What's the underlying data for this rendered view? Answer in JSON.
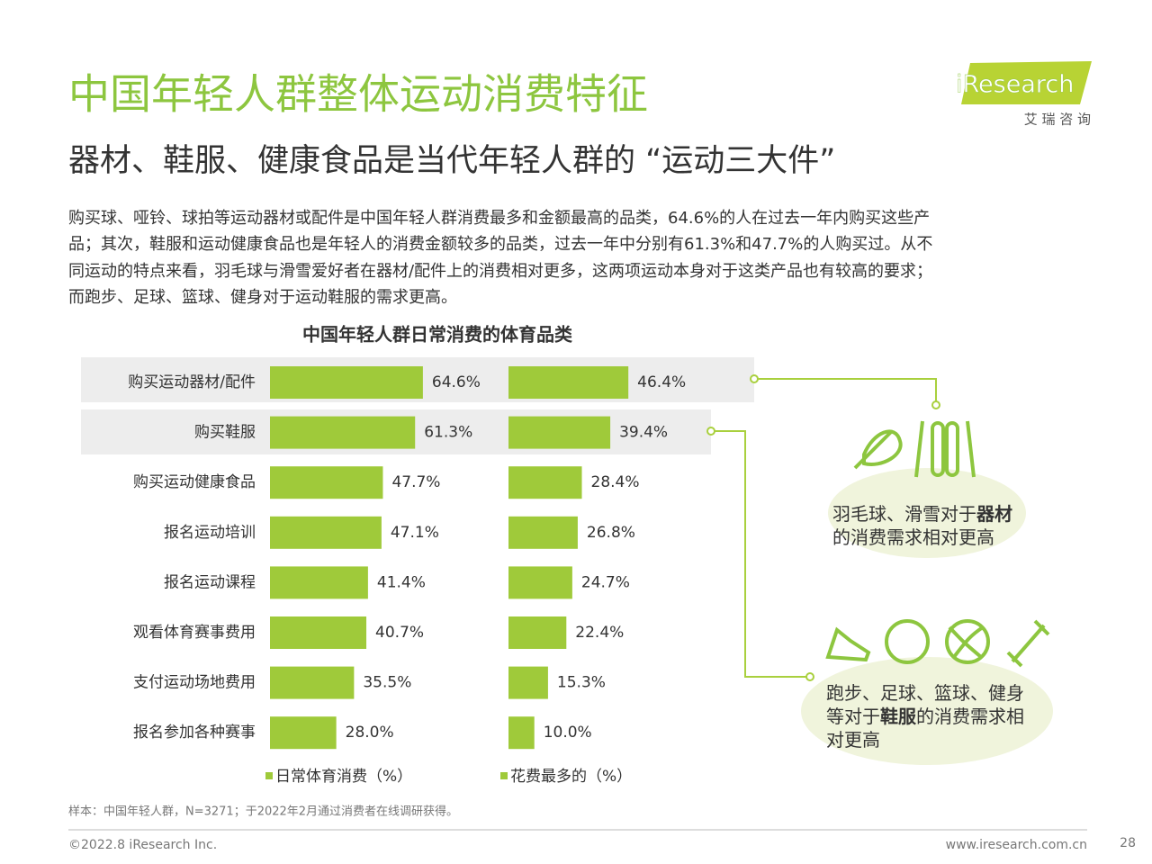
{
  "header": {
    "title": "中国年轻人群整体运动消费特征",
    "subtitle": "器材、鞋服、健康食品是当代年轻人群的 “运动三大件”",
    "body_lines": [
      "购买球、哑铃、球拍等运动器材或配件是中国年轻人群消费最多和金额最高的品类，64.6%的人在过去一年内购买这些产",
      "品；其次，鞋服和运动健康食品也是年轻人的消费金额较多的品类，过去一年中分别有61.3%和47.7%的人购买过。从不",
      "同运动的特点来看，羽毛球与滑雪爱好者在器材/配件上的消费相对更多，这两项运动本身对于这类产品也有较高的要求；",
      "而跑步、足球、篮球、健身对于运动鞋服的需求更高。"
    ]
  },
  "logo": {
    "brand": "iResearch",
    "brand_cn": "艾 瑞 咨 询"
  },
  "chart_data": {
    "type": "bar",
    "orientation": "horizontal",
    "title": "中国年轻人群日常消费的体育品类",
    "categories": [
      "购买运动器材/配件",
      "购买鞋服",
      "购买运动健康食品",
      "报名运动培训",
      "报名运动课程",
      "观看体育赛事费用",
      "支付运动场地费用",
      "报名参加各种赛事"
    ],
    "series": [
      {
        "name": "日常体育消费（%）",
        "color": "#9fca3a",
        "values": [
          64.6,
          61.3,
          47.7,
          47.1,
          41.4,
          40.7,
          35.5,
          28.0
        ],
        "value_labels": [
          "64.6%",
          "61.3%",
          "47.7%",
          "47.1%",
          "41.4%",
          "40.7%",
          "35.5%",
          "28.0%"
        ]
      },
      {
        "name": "花费最多的（%）",
        "color": "#9fca3a",
        "values": [
          46.4,
          39.4,
          28.4,
          26.8,
          24.7,
          22.4,
          15.3,
          10.0
        ],
        "value_labels": [
          "46.4%",
          "39.4%",
          "28.4%",
          "26.8%",
          "24.7%",
          "22.4%",
          "15.3%",
          "10.0%"
        ]
      }
    ],
    "annotations": [
      {
        "lines": [
          [
            "羽毛球、滑雪对于",
            "器材"
          ],
          [
            "的消费需求相对更高"
          ]
        ]
      },
      {
        "lines": [
          [
            "跑步、足球、篮球、健身"
          ],
          [
            "等对于",
            "鞋服",
            "的消费需求相"
          ],
          [
            "对更高"
          ]
        ]
      }
    ]
  },
  "footer": {
    "note": "样本：中国年轻人群，N=3271；于2022年2月通过消费者在线调研获得。",
    "copyright": "©2022.8 iResearch Inc.",
    "url": "www.iresearch.com.cn",
    "page": "28"
  }
}
